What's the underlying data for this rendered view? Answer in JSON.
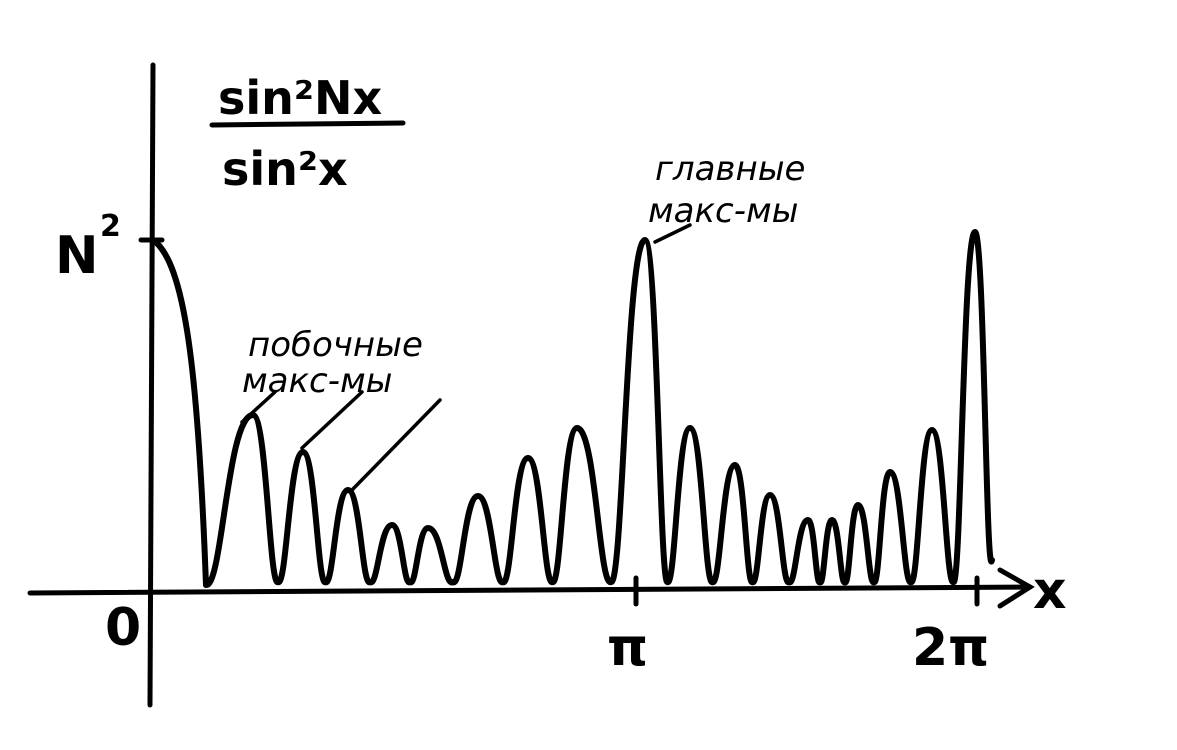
{
  "formula": {
    "numerator": "sin²Nx",
    "denominator": "sin²x"
  },
  "y_axis": {
    "max_label_base": "N",
    "max_label_sup": "2"
  },
  "x_axis": {
    "label": "x",
    "origin_label": "0",
    "ticks": [
      "π",
      "2π"
    ]
  },
  "annotations": {
    "secondary": {
      "line1": "побочные",
      "line2": "макс-мы"
    },
    "principal": {
      "line1": "главные",
      "line2": "макс-мы"
    }
  },
  "colors": {
    "ink": "#000000",
    "paper": "#ffffff"
  }
}
